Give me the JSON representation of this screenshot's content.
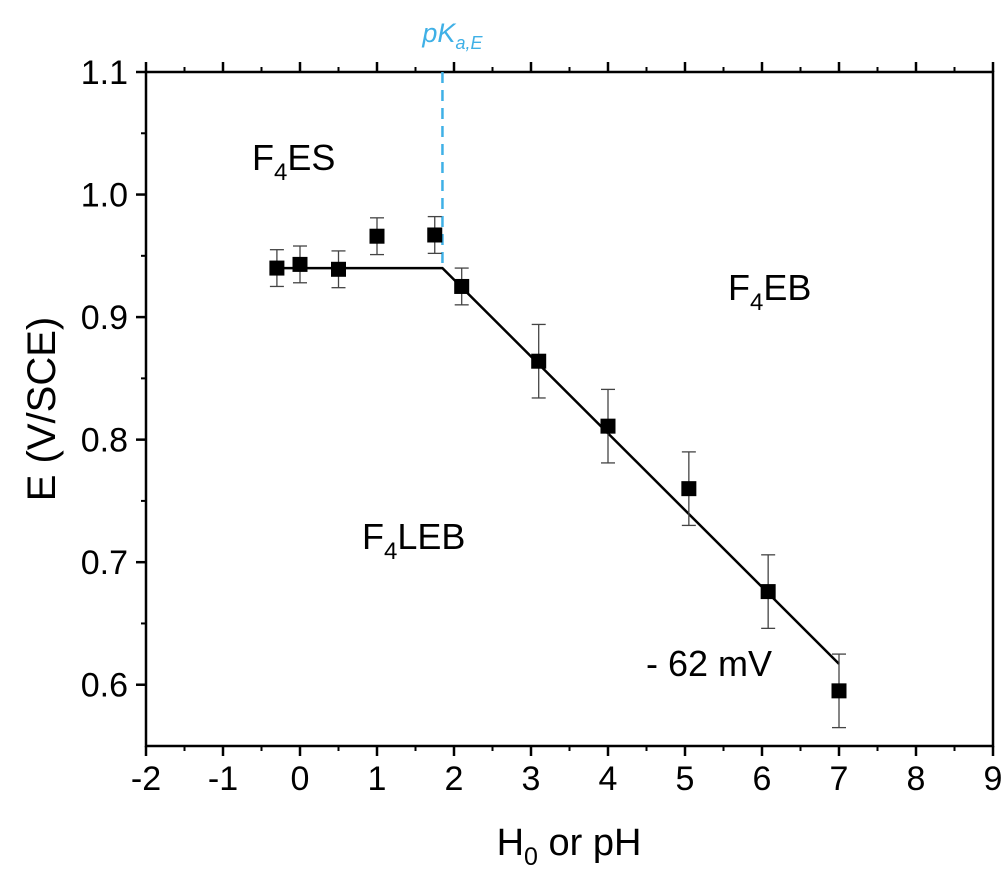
{
  "chart_data": {
    "type": "scatter",
    "xlabel": {
      "main": "H",
      "sub": "0",
      "rest": " or pH"
    },
    "ylabel": "E (V/SCE)",
    "xlim": [
      -2,
      9
    ],
    "ylim": [
      0.55,
      1.1
    ],
    "x_ticks": [
      "-2",
      "-1",
      "0",
      "1",
      "2",
      "3",
      "4",
      "5",
      "6",
      "7",
      "8",
      "9"
    ],
    "y_ticks": [
      "0.6",
      "0.7",
      "0.8",
      "0.9",
      "1.0",
      "1.1"
    ],
    "series": [
      {
        "marker": "square",
        "color": "#000000",
        "x": [
          -0.3,
          0.0,
          0.5,
          1.0,
          1.75,
          2.1,
          3.1,
          4.0,
          5.05,
          6.08,
          7.0
        ],
        "y": [
          0.94,
          0.943,
          0.939,
          0.966,
          0.967,
          0.925,
          0.864,
          0.811,
          0.76,
          0.676,
          0.595
        ],
        "error": [
          0.015,
          0.015,
          0.015,
          0.015,
          0.015,
          0.015,
          0.03,
          0.03,
          0.03,
          0.03,
          0.03
        ]
      }
    ],
    "fit_line": {
      "x": [
        -0.3,
        1.85,
        7.0
      ],
      "y": [
        0.94,
        0.94,
        0.617
      ]
    },
    "vline": {
      "x": 1.85,
      "color": "#3fb0e6",
      "label_main": "pK",
      "label_sub": "a,E"
    },
    "annotations": {
      "slope": "- 62 mV",
      "region_es": {
        "main": "F",
        "sub": "4",
        "rest": "ES"
      },
      "region_eb": {
        "main": "F",
        "sub": "4",
        "rest": "EB"
      },
      "region_leb": {
        "main": "F",
        "sub": "4",
        "rest": "LEB"
      }
    },
    "grid": false
  }
}
